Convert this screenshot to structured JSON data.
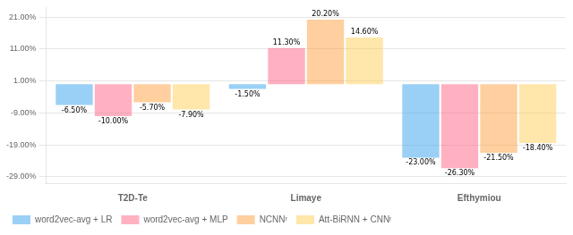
{
  "chart_data": {
    "type": "bar",
    "categories": [
      "T2D-Te",
      "Limaye",
      "Efthymiou"
    ],
    "series": [
      {
        "name": "word2vec-avg + LR",
        "values": [
          -6.5,
          -1.5,
          -23.0
        ],
        "value_labels": [
          "-6.50%",
          "-1.50%",
          "-23.00%"
        ]
      },
      {
        "name": "word2vec-avg + MLP",
        "values": [
          -10.0,
          11.3,
          -26.3
        ],
        "value_labels": [
          "-10.00%",
          "11.30%",
          "-26.30%"
        ]
      },
      {
        "name": "NCNNʳ",
        "values": [
          -5.7,
          20.2,
          -21.5
        ],
        "value_labels": [
          "-5.70%",
          "20.20%",
          "-21.50%"
        ]
      },
      {
        "name": "Att-BiRNN + CNNʳ",
        "values": [
          -7.9,
          14.6,
          -18.4
        ],
        "value_labels": [
          "-7.90%",
          "14.60%",
          "-18.40%"
        ]
      }
    ],
    "ylim": [
      -31,
      24
    ],
    "yticks": [
      {
        "value": -29.0,
        "label": "-29.00%"
      },
      {
        "value": -19.0,
        "label": "-19.00%"
      },
      {
        "value": -9.0,
        "label": "-9.00%"
      },
      {
        "value": 1.0,
        "label": "1.00%"
      },
      {
        "value": 11.0,
        "label": "11.00%"
      },
      {
        "value": 21.0,
        "label": "21.00%"
      }
    ],
    "grid": true,
    "legend": "lower left",
    "data_labels": true
  }
}
